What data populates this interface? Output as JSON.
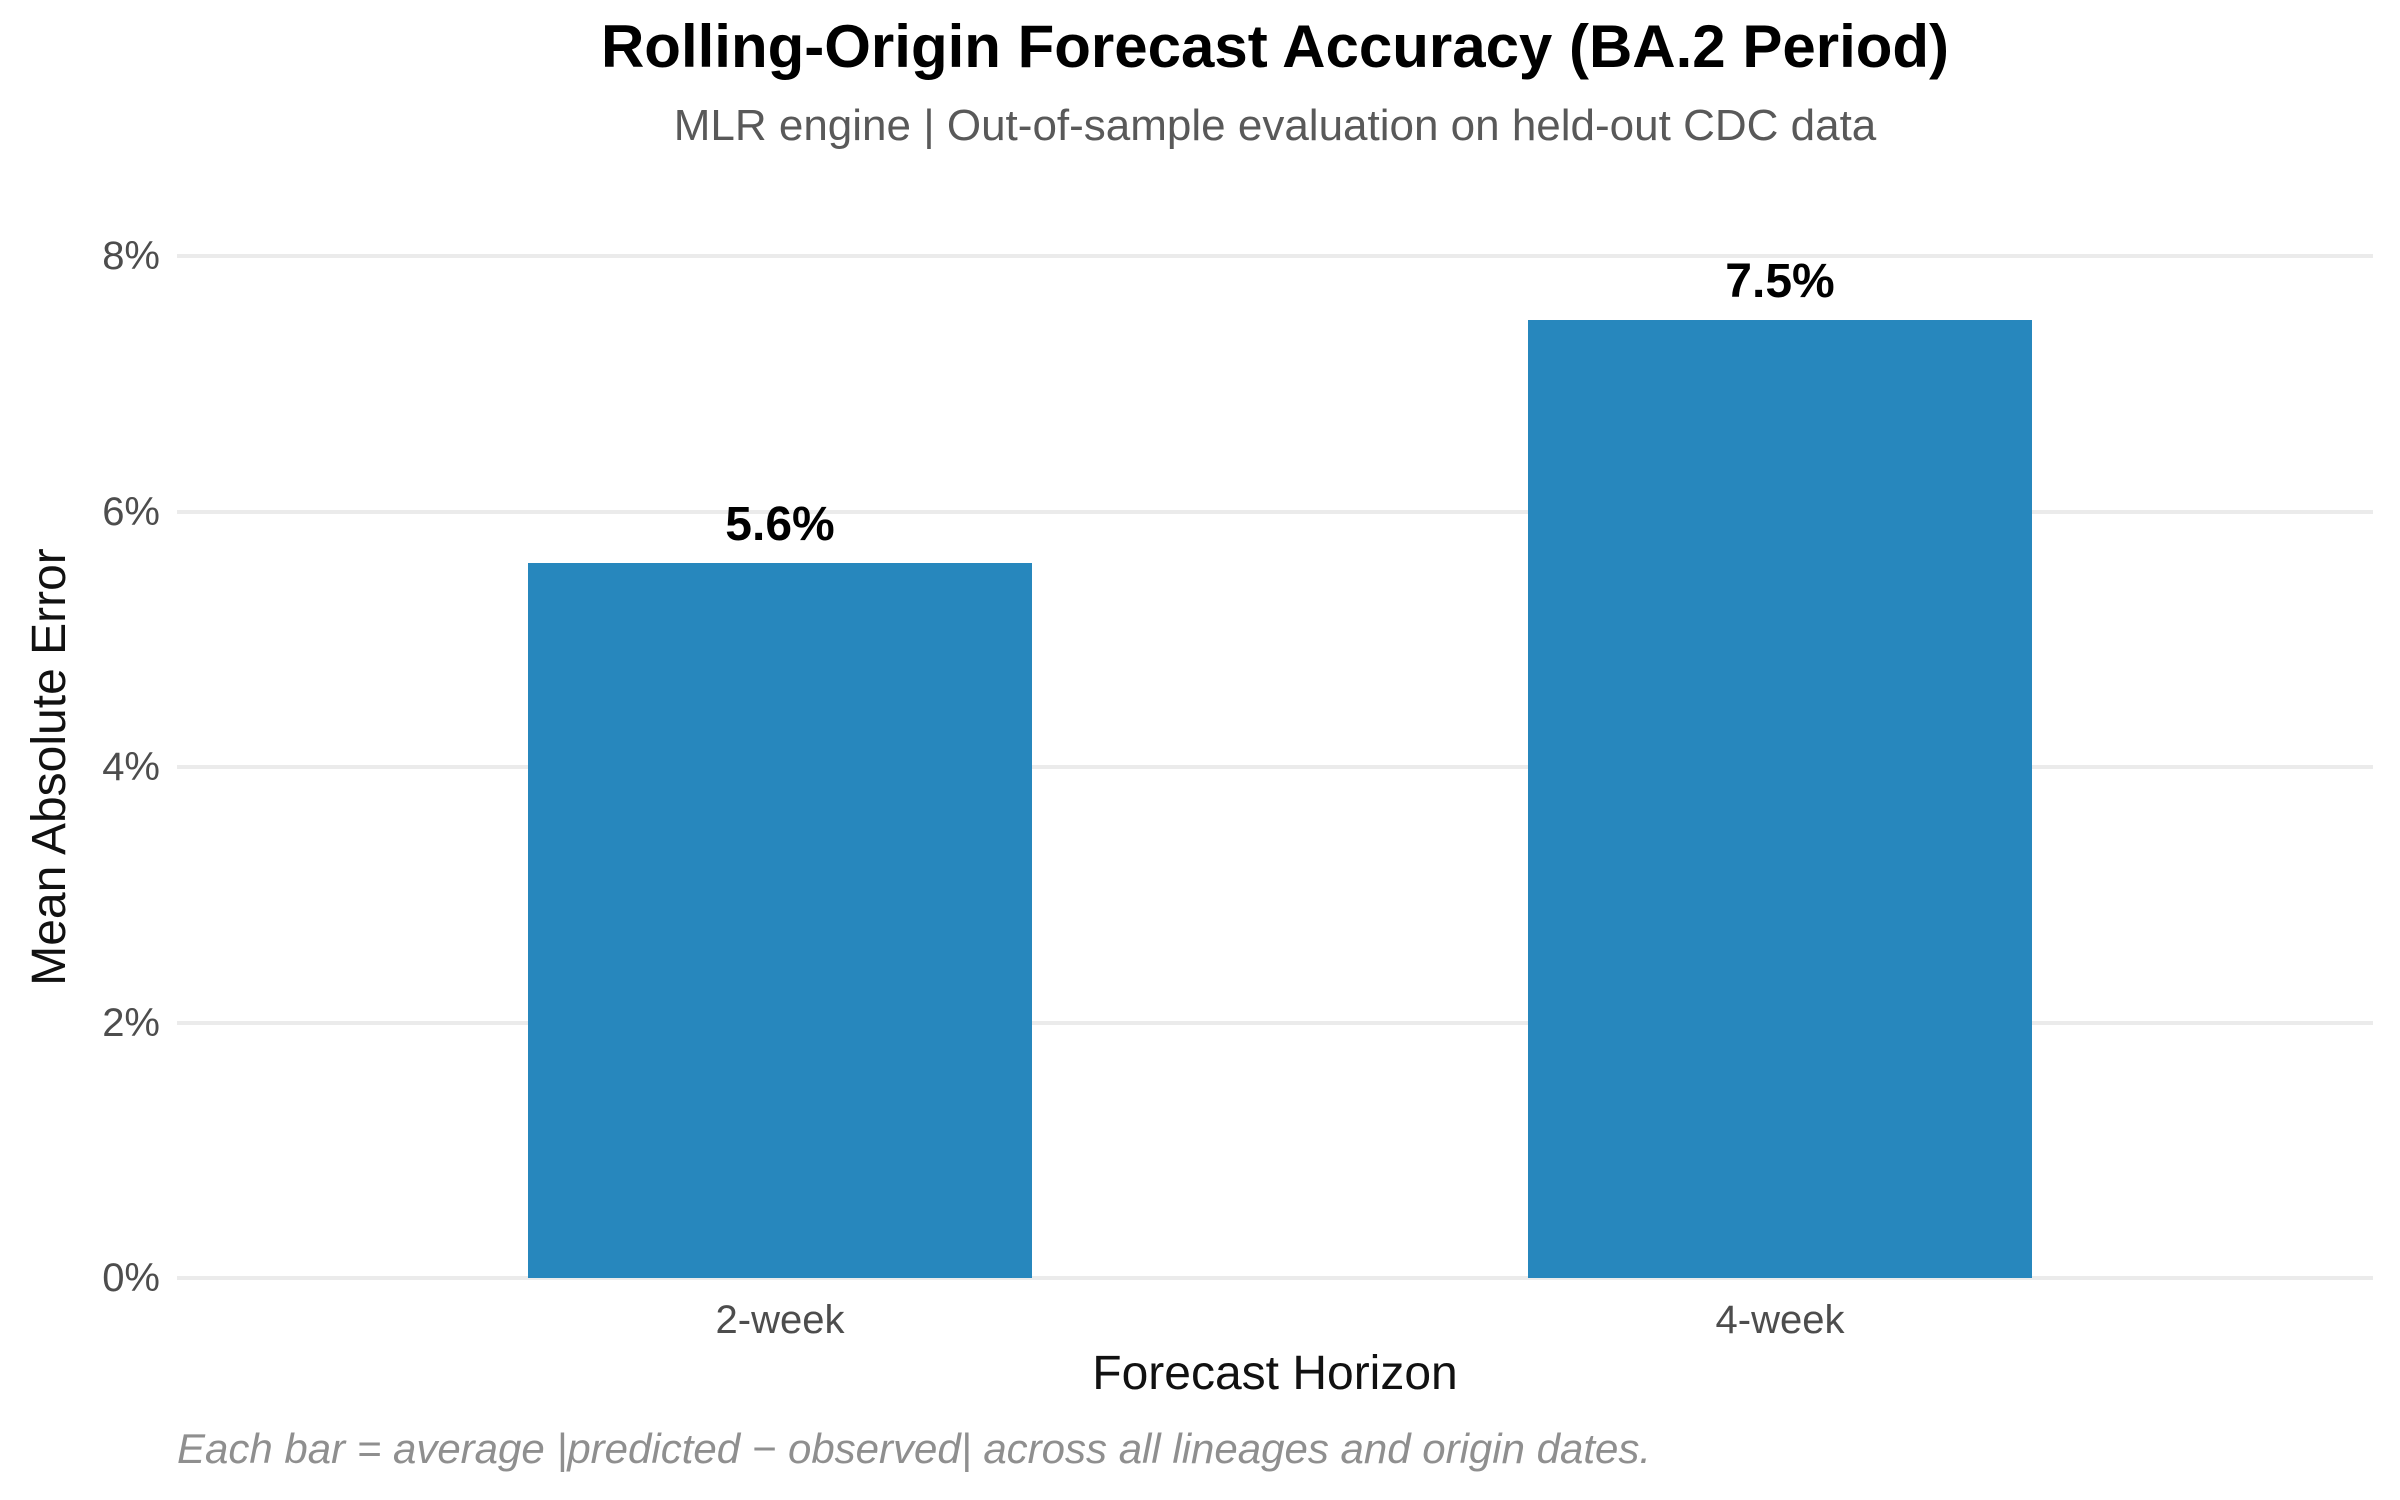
{
  "chart_data": {
    "type": "bar",
    "title": "Rolling-Origin Forecast Accuracy (BA.2 Period)",
    "subtitle": "MLR engine | Out-of-sample evaluation on held-out CDC data",
    "categories": [
      "2-week",
      "4-week"
    ],
    "values": [
      5.6,
      7.5
    ],
    "value_labels": [
      "5.6%",
      "7.5%"
    ],
    "xlabel": "Forecast Horizon",
    "ylabel": "Mean Absolute Error",
    "ylim": [
      0,
      8
    ],
    "yticks": [
      0,
      2,
      4,
      6,
      8
    ],
    "ytick_labels": [
      "0%",
      "2%",
      "4%",
      "6%",
      "8%"
    ],
    "grid": "horizontal-only",
    "legend_position": "none",
    "footnote": "Each bar = average |predicted − observed| across all lineages and origin dates."
  },
  "colors": {
    "background": "#ffffff",
    "bar": "#2787bd",
    "gridline": "#ebebeb",
    "title": "#000000",
    "subtitle": "#595959",
    "tick_label": "#4d4d4d",
    "axis_label": "#111111",
    "value_label": "#000000",
    "footnote": "#8f8f8f"
  }
}
